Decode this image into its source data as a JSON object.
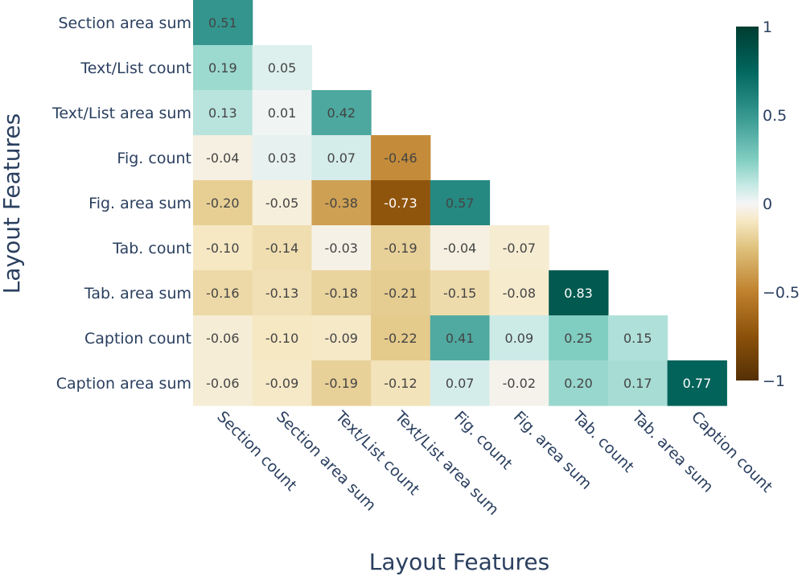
{
  "chart_data": {
    "type": "heatmap",
    "title": "",
    "xlabel": "Layout Features",
    "ylabel": "Layout Features",
    "x_categories": [
      "Section count",
      "Section area sum",
      "Text/List count",
      "Text/List area sum",
      "Fig. count",
      "Fig. area sum",
      "Tab. count",
      "Tab. area sum",
      "Caption count"
    ],
    "y_categories": [
      "Section area sum",
      "Text/List count",
      "Text/List area sum",
      "Fig. count",
      "Fig. area sum",
      "Tab. count",
      "Tab. area sum",
      "Caption count",
      "Caption area sum"
    ],
    "values": [
      [
        0.51
      ],
      [
        0.19,
        0.05
      ],
      [
        0.13,
        0.01,
        0.42
      ],
      [
        -0.04,
        0.03,
        0.07,
        -0.46
      ],
      [
        -0.2,
        -0.05,
        -0.38,
        -0.73,
        0.57
      ],
      [
        -0.1,
        -0.14,
        -0.03,
        -0.19,
        -0.04,
        -0.07
      ],
      [
        -0.16,
        -0.13,
        -0.18,
        -0.21,
        -0.15,
        -0.08,
        0.83
      ],
      [
        -0.06,
        -0.1,
        -0.09,
        -0.22,
        0.41,
        0.09,
        0.25,
        0.15
      ],
      [
        -0.06,
        -0.09,
        -0.19,
        -0.12,
        0.07,
        -0.02,
        0.2,
        0.17,
        0.77
      ]
    ],
    "zlim": [
      -1,
      1
    ],
    "colorscale": [
      [
        -1.0,
        "#543005"
      ],
      [
        -0.75,
        "#8c510a"
      ],
      [
        -0.5,
        "#bf812d"
      ],
      [
        -0.25,
        "#dfc27d"
      ],
      [
        -0.1,
        "#f6e8c3"
      ],
      [
        0.0,
        "#f5f5f5"
      ],
      [
        0.1,
        "#c7eae5"
      ],
      [
        0.25,
        "#80cdc1"
      ],
      [
        0.5,
        "#35978f"
      ],
      [
        0.75,
        "#01665e"
      ],
      [
        1.0,
        "#003c30"
      ]
    ],
    "colorbar": {
      "tick_values": [
        1,
        0.5,
        0,
        -0.5,
        -1
      ],
      "tick_labels": [
        "1",
        "0.5",
        "0",
        "−0.5",
        "−1"
      ]
    }
  }
}
